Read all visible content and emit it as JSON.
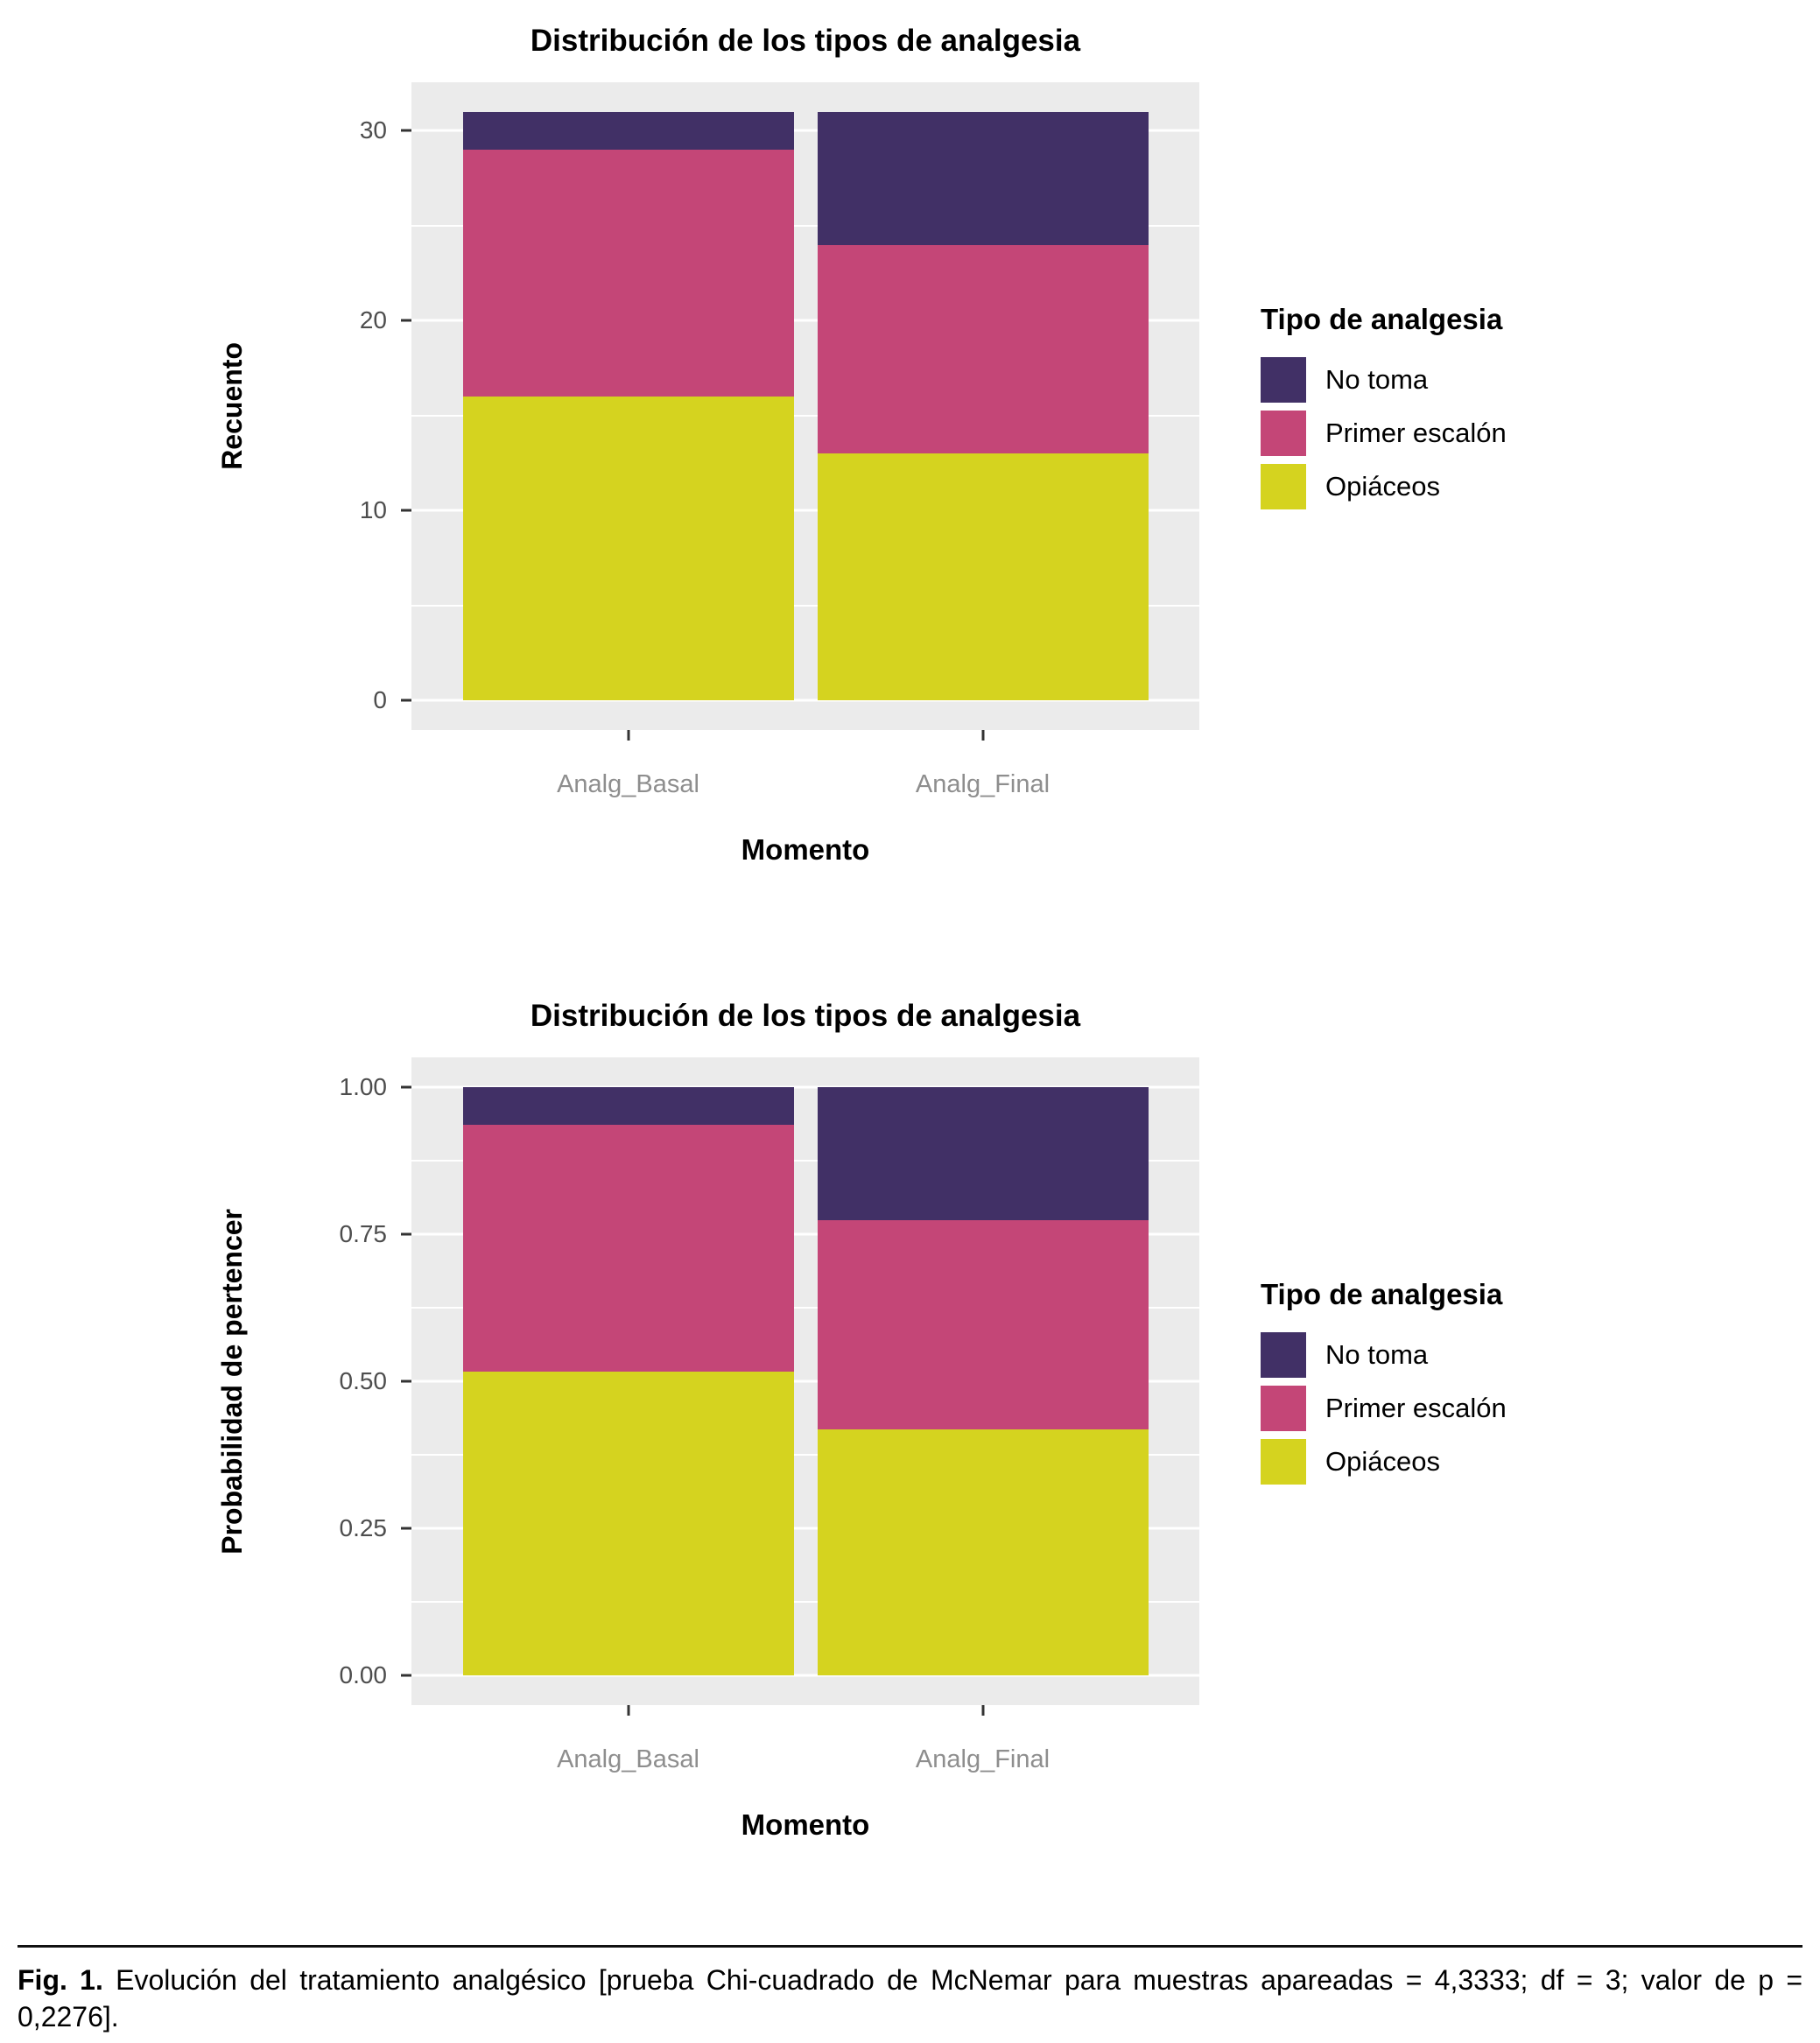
{
  "chart_data": [
    {
      "type": "bar",
      "stacked": true,
      "title": "Distribución de los tipos de analgesia",
      "xlabel": "Momento",
      "ylabel": "Recuento",
      "legend_title": "Tipo de analgesia",
      "legend_position": "right",
      "grid": true,
      "categories": [
        "Analg_Basal",
        "Analg_Final"
      ],
      "series": [
        {
          "name": "No toma",
          "color": "#413066",
          "values": [
            2,
            7
          ]
        },
        {
          "name": "Primer escalón",
          "color": "#C44677",
          "values": [
            13,
            11
          ]
        },
        {
          "name": "Opiáceos",
          "color": "#D5D31F",
          "values": [
            16,
            13
          ]
        }
      ],
      "totals": [
        31,
        31
      ],
      "ylim": [
        0,
        31
      ],
      "y_major_ticks": [
        0,
        10,
        20,
        30
      ],
      "y_tick_labels": [
        "0",
        "10",
        "20",
        "30"
      ],
      "y_minor_ticks": [
        5,
        15,
        25
      ]
    },
    {
      "type": "bar",
      "stacked": true,
      "title": "Distribución de los tipos de analgesia",
      "xlabel": "Momento",
      "ylabel": "Probabilidad de pertencer",
      "legend_title": "Tipo de analgesia",
      "legend_position": "right",
      "grid": true,
      "categories": [
        "Analg_Basal",
        "Analg_Final"
      ],
      "series": [
        {
          "name": "No toma",
          "color": "#413066",
          "values": [
            0.065,
            0.226
          ]
        },
        {
          "name": "Primer escalón",
          "color": "#C44677",
          "values": [
            0.419,
            0.355
          ]
        },
        {
          "name": "Opiáceos",
          "color": "#D5D31F",
          "values": [
            0.516,
            0.419
          ]
        }
      ],
      "totals": [
        1.0,
        1.0
      ],
      "ylim": [
        0,
        1
      ],
      "y_major_ticks": [
        0,
        0.25,
        0.5,
        0.75,
        1.0
      ],
      "y_tick_labels": [
        "0.00",
        "0.25",
        "0.50",
        "0.75",
        "1.00"
      ],
      "y_minor_ticks": [
        0.125,
        0.375,
        0.625,
        0.875
      ]
    }
  ],
  "caption": {
    "label": "Fig. 1.",
    "text": "Evolución del tratamiento analgésico [prueba Chi-cuadrado de McNemar para muestras apareadas = 4,3333; df = 3; valor de p = 0,2276]."
  },
  "style": {
    "panel_bg": "#EBEBEB",
    "grid_color": "#FFFFFF",
    "axis_text_color": "#4D4D4D",
    "category_text_color": "#8E8E8E",
    "tick_mark_color": "#333333"
  }
}
